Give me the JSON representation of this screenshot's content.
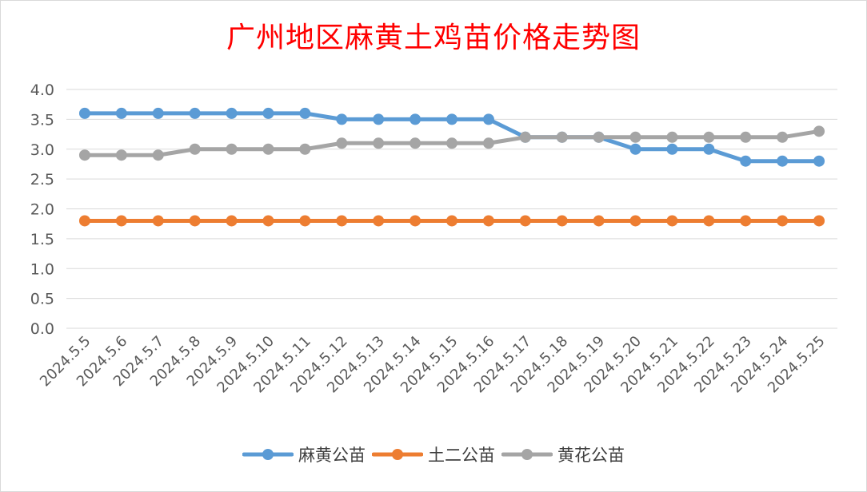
{
  "chart_data": {
    "type": "line",
    "title": "广州地区麻黄土鸡苗价格走势图",
    "xlabel": "",
    "ylabel": "",
    "ylim": [
      0,
      4.0
    ],
    "yticks": [
      "0.0",
      "0.5",
      "1.0",
      "1.5",
      "2.0",
      "2.5",
      "3.0",
      "3.5",
      "4.0"
    ],
    "grid": true,
    "legend_position": "bottom",
    "categories": [
      "2024.5.5",
      "2024.5.6",
      "2024.5.7",
      "2024.5.8",
      "2024.5.9",
      "2024.5.10",
      "2024.5.11",
      "2024.5.12",
      "2024.5.13",
      "2024.5.14",
      "2024.5.15",
      "2024.5.16",
      "2024.5.17",
      "2024.5.18",
      "2024.5.19",
      "2024.5.20",
      "2024.5.21",
      "2024.5.22",
      "2024.5.23",
      "2024.5.24",
      "2024.5.25"
    ],
    "series": [
      {
        "name": "麻黄公苗",
        "color": "#5b9bd5",
        "values": [
          3.6,
          3.6,
          3.6,
          3.6,
          3.6,
          3.6,
          3.6,
          3.5,
          3.5,
          3.5,
          3.5,
          3.5,
          3.2,
          3.2,
          3.2,
          3.0,
          3.0,
          3.0,
          2.8,
          2.8,
          2.8
        ]
      },
      {
        "name": "土二公苗",
        "color": "#ed7d31",
        "values": [
          1.8,
          1.8,
          1.8,
          1.8,
          1.8,
          1.8,
          1.8,
          1.8,
          1.8,
          1.8,
          1.8,
          1.8,
          1.8,
          1.8,
          1.8,
          1.8,
          1.8,
          1.8,
          1.8,
          1.8,
          1.8
        ]
      },
      {
        "name": "黄花公苗",
        "color": "#a5a5a5",
        "values": [
          2.9,
          2.9,
          2.9,
          3.0,
          3.0,
          3.0,
          3.0,
          3.1,
          3.1,
          3.1,
          3.1,
          3.1,
          3.2,
          3.2,
          3.2,
          3.2,
          3.2,
          3.2,
          3.2,
          3.2,
          3.3
        ]
      }
    ]
  }
}
